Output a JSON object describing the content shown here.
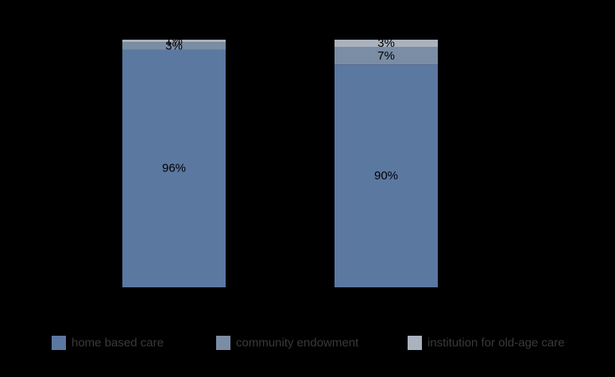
{
  "chart_data": {
    "type": "bar",
    "stacked": true,
    "categories": [
      "",
      ""
    ],
    "series": [
      {
        "name": "home based care",
        "values": [
          96,
          90
        ],
        "labels": [
          "96%",
          "90%"
        ],
        "color": "#5b78a1"
      },
      {
        "name": "community endowment",
        "values": [
          3,
          7
        ],
        "labels": [
          "3%",
          "7%"
        ],
        "color": "#7b8da5"
      },
      {
        "name": "institution for old-age care",
        "values": [
          1,
          3
        ],
        "labels": [
          "1%",
          "3%"
        ],
        "color": "#aab2be"
      }
    ],
    "title": "",
    "xlabel": "",
    "ylabel": "",
    "ylim": [
      0,
      100
    ],
    "grid": false,
    "legend_position": "bottom"
  }
}
